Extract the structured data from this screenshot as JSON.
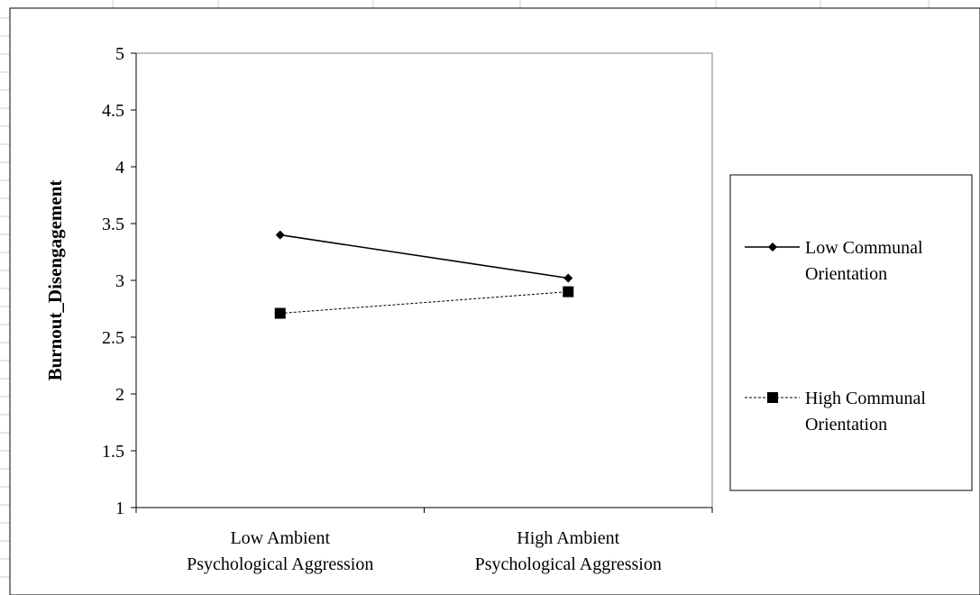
{
  "chart_data": {
    "type": "line",
    "title": "",
    "xlabel": "",
    "ylabel": "Burnout_Disengagement",
    "ylim": [
      1,
      5
    ],
    "yticks": [
      "1",
      "1.5",
      "2",
      "2.5",
      "3",
      "3.5",
      "4",
      "4.5",
      "5"
    ],
    "categories": [
      [
        "Low Ambient",
        "Psychological Aggression"
      ],
      [
        "High Ambient",
        "Psychological Aggression"
      ]
    ],
    "series": [
      {
        "name": [
          "Low Communal",
          "Orientation"
        ],
        "values": [
          3.4,
          3.02
        ],
        "marker": "diamond",
        "line": "solid",
        "color": "#000000"
      },
      {
        "name": [
          "High Communal",
          "Orientation"
        ],
        "values": [
          2.71,
          2.9
        ],
        "marker": "square",
        "line": "dashed",
        "color": "#000000"
      }
    ],
    "grid": false,
    "legend": "right"
  }
}
